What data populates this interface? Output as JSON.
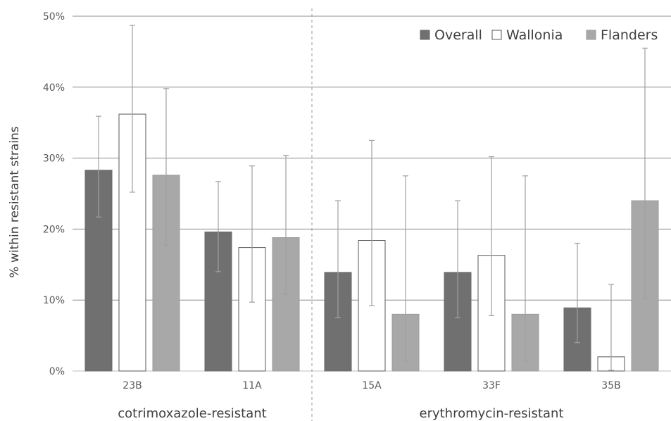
{
  "chart_data": {
    "type": "bar",
    "ylabel": "% within resistant strains",
    "ylim": [
      0,
      50
    ],
    "yticks": [
      "0%",
      "10%",
      "20%",
      "30%",
      "40%",
      "50%"
    ],
    "yticks_values": [
      0,
      10,
      20,
      30,
      40,
      50
    ],
    "grid": true,
    "legend_position": "top-right",
    "categories": [
      "23B",
      "11A",
      "15A",
      "33F",
      "35B"
    ],
    "groups": [
      {
        "label": "cotrimoxazole-resistant",
        "categories": [
          "23B",
          "11A"
        ]
      },
      {
        "label": "erythromycin-resistant",
        "categories": [
          "15A",
          "33F",
          "35B"
        ]
      }
    ],
    "series": [
      {
        "name": "Overall",
        "color": "#707070",
        "values": [
          28.3,
          19.6,
          13.9,
          13.9,
          8.9
        ],
        "err_low": [
          21.7,
          14.0,
          7.5,
          7.5,
          4.0
        ],
        "err_high": [
          35.9,
          26.7,
          24.0,
          24.0,
          18.0
        ]
      },
      {
        "name": "Wallonia",
        "color": "#ffffff",
        "values": [
          36.2,
          17.4,
          18.4,
          16.3,
          2.0
        ],
        "err_low": [
          25.2,
          9.7,
          9.2,
          7.8,
          0.1
        ],
        "err_high": [
          48.7,
          28.9,
          32.5,
          30.2,
          12.2
        ]
      },
      {
        "name": "Flanders",
        "color": "#a8a8a8",
        "values": [
          27.6,
          18.8,
          8.0,
          8.0,
          24.0
        ],
        "err_low": [
          17.7,
          10.8,
          1.4,
          1.4,
          10.2
        ],
        "err_high": [
          39.8,
          30.4,
          27.5,
          27.5,
          45.5
        ]
      }
    ]
  }
}
